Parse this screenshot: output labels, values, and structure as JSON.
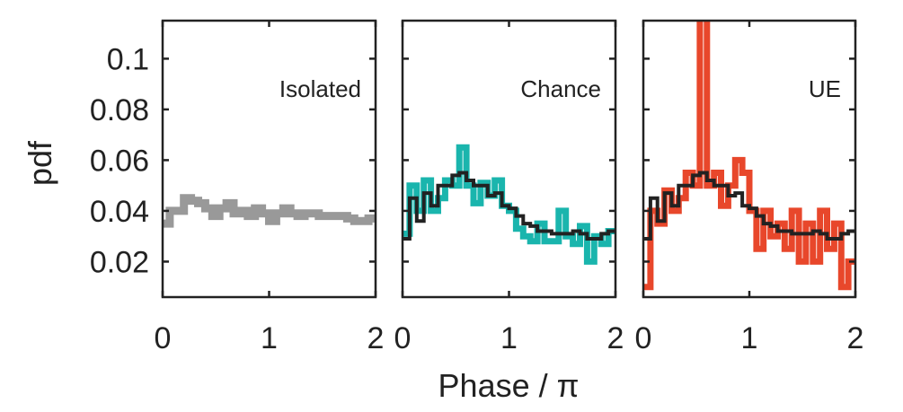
{
  "chart_data": [
    {
      "type": "line",
      "title": "Isolated",
      "ylabel": "pdf",
      "xlim": [
        0,
        2
      ],
      "ylim": [
        0.006,
        0.115
      ],
      "yticks": [
        0.02,
        0.04,
        0.06,
        0.08,
        0.1
      ],
      "ytick_labels": [
        "0.02",
        "0.04",
        "0.06",
        "0.08",
        "0.1"
      ],
      "xticks": [
        0,
        1,
        2
      ],
      "xtick_labels": [
        "0",
        "1",
        "2"
      ],
      "series": [
        {
          "color": "#999999",
          "style": "step",
          "x_start": 0.0,
          "x_step": 0.0667,
          "values": [
            0.035,
            0.04,
            0.04,
            0.045,
            0.044,
            0.043,
            0.041,
            0.038,
            0.041,
            0.043,
            0.039,
            0.04,
            0.038,
            0.041,
            0.039,
            0.036,
            0.039,
            0.041,
            0.039,
            0.038,
            0.039,
            0.039,
            0.038,
            0.038,
            0.038,
            0.038,
            0.037,
            0.036,
            0.036,
            0.037
          ]
        }
      ]
    },
    {
      "type": "line",
      "title": "Chance",
      "xlim": [
        0,
        2
      ],
      "ylim": [
        0.006,
        0.115
      ],
      "xticks": [
        0,
        1,
        2
      ],
      "xtick_labels": [
        "0",
        "1",
        "2"
      ],
      "series": [
        {
          "color": "#1ab5ad",
          "style": "step",
          "x_start": 0.0,
          "x_step": 0.0667,
          "values": [
            0.031,
            0.05,
            0.04,
            0.052,
            0.04,
            0.045,
            0.052,
            0.05,
            0.065,
            0.05,
            0.043,
            0.051,
            0.046,
            0.052,
            0.042,
            0.04,
            0.033,
            0.03,
            0.028,
            0.035,
            0.028,
            0.028,
            0.04,
            0.03,
            0.027,
            0.034,
            0.02,
            0.03,
            0.027,
            0.032
          ]
        },
        {
          "color": "#222222",
          "style": "step",
          "x_start": 0.0,
          "x_step": 0.0667,
          "values": [
            0.029,
            0.045,
            0.036,
            0.047,
            0.042,
            0.05,
            0.05,
            0.054,
            0.055,
            0.052,
            0.05,
            0.05,
            0.046,
            0.047,
            0.042,
            0.041,
            0.038,
            0.035,
            0.034,
            0.032,
            0.032,
            0.031,
            0.031,
            0.031,
            0.032,
            0.031,
            0.029,
            0.029,
            0.031,
            0.032
          ]
        }
      ]
    },
    {
      "type": "line",
      "title": "UE",
      "xlim": [
        0,
        2
      ],
      "ylim": [
        0.006,
        0.115
      ],
      "xticks": [
        0,
        1,
        2
      ],
      "xtick_labels": [
        "0",
        "1",
        "2"
      ],
      "series": [
        {
          "color": "#e8472b",
          "style": "step",
          "x_start": 0.0,
          "x_step": 0.0667,
          "values": [
            0.01,
            0.04,
            0.035,
            0.048,
            0.04,
            0.045,
            0.055,
            0.05,
            0.118,
            0.05,
            0.055,
            0.042,
            0.05,
            0.06,
            0.055,
            0.04,
            0.025,
            0.04,
            0.03,
            0.035,
            0.025,
            0.04,
            0.02,
            0.035,
            0.02,
            0.04,
            0.025,
            0.035,
            0.01,
            0.02
          ]
        },
        {
          "color": "#222222",
          "style": "step",
          "x_start": 0.0,
          "x_step": 0.0667,
          "values": [
            0.029,
            0.045,
            0.036,
            0.047,
            0.042,
            0.05,
            0.05,
            0.054,
            0.055,
            0.052,
            0.05,
            0.05,
            0.046,
            0.047,
            0.042,
            0.041,
            0.038,
            0.035,
            0.034,
            0.032,
            0.032,
            0.031,
            0.031,
            0.031,
            0.032,
            0.031,
            0.029,
            0.029,
            0.031,
            0.032
          ]
        }
      ]
    }
  ],
  "xlabel": "Phase / π"
}
